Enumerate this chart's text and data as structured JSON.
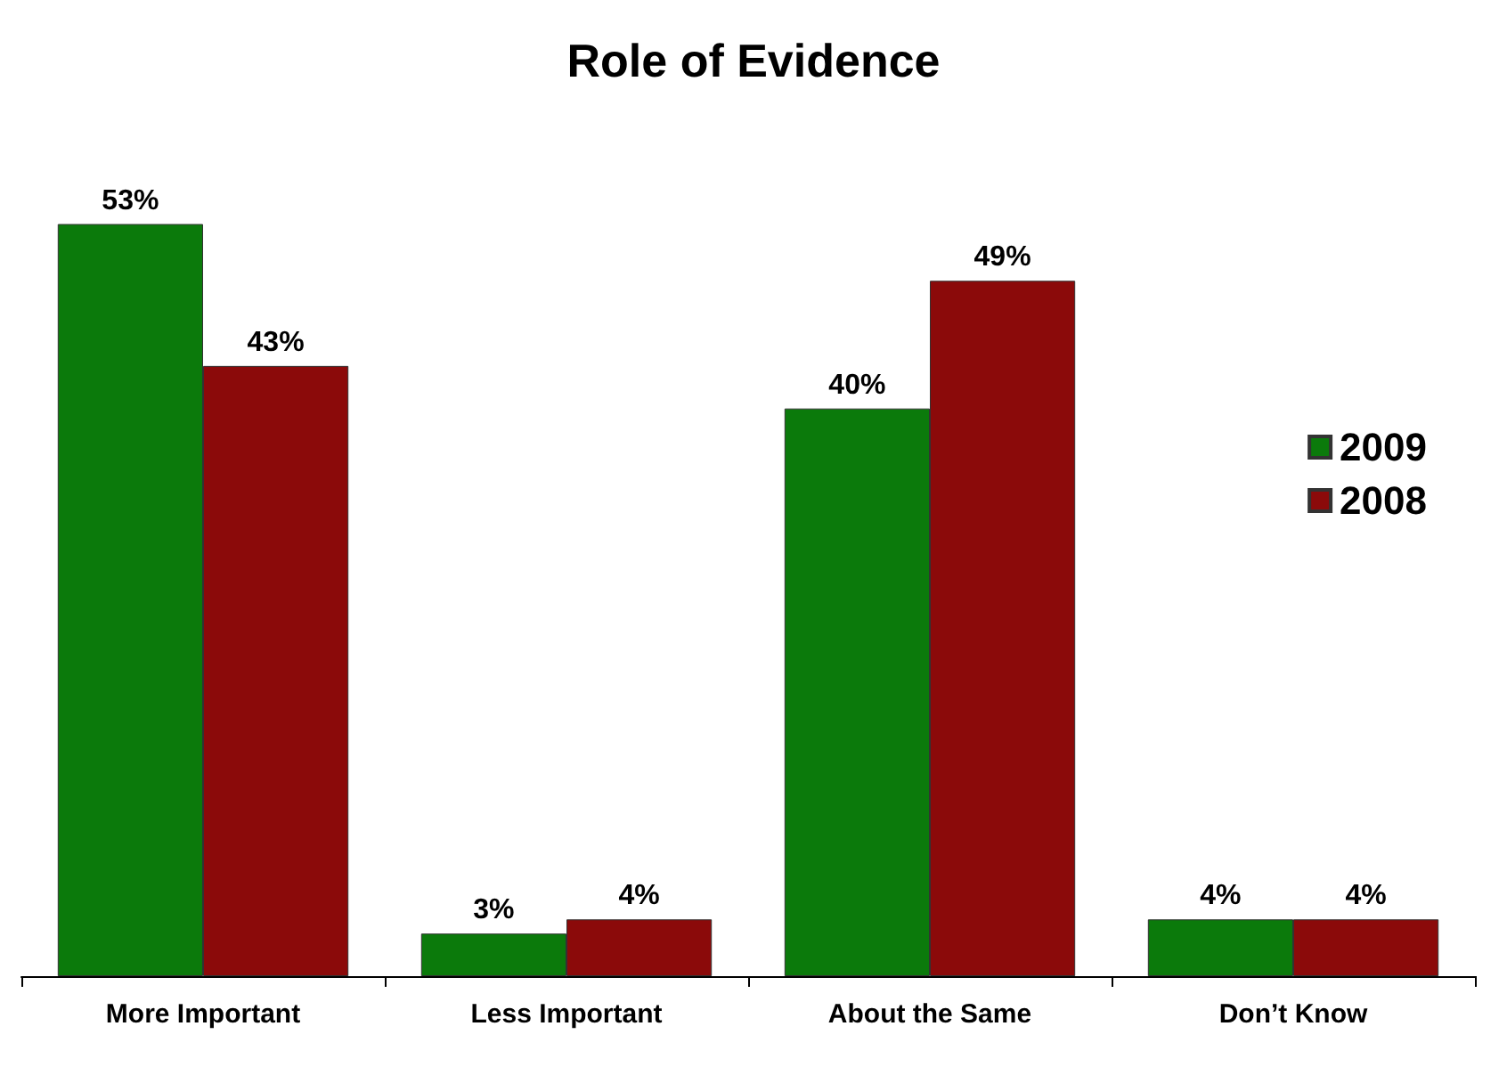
{
  "chart_data": {
    "type": "bar",
    "title": "Role of Evidence",
    "categories": [
      "More Important",
      "Less Important",
      "About the Same",
      "Don’t Know"
    ],
    "series": [
      {
        "name": "2009",
        "color": "#0b7a0b",
        "values": [
          53,
          3,
          40,
          4
        ],
        "value_labels": [
          "53%",
          "3%",
          "40%",
          "4%"
        ]
      },
      {
        "name": "2008",
        "color": "#8b0a0a",
        "values": [
          43,
          4,
          49,
          4
        ],
        "value_labels": [
          "43%",
          "4%",
          "49%",
          "4%"
        ]
      }
    ],
    "legend": "right",
    "tick_labels": "x"
  }
}
